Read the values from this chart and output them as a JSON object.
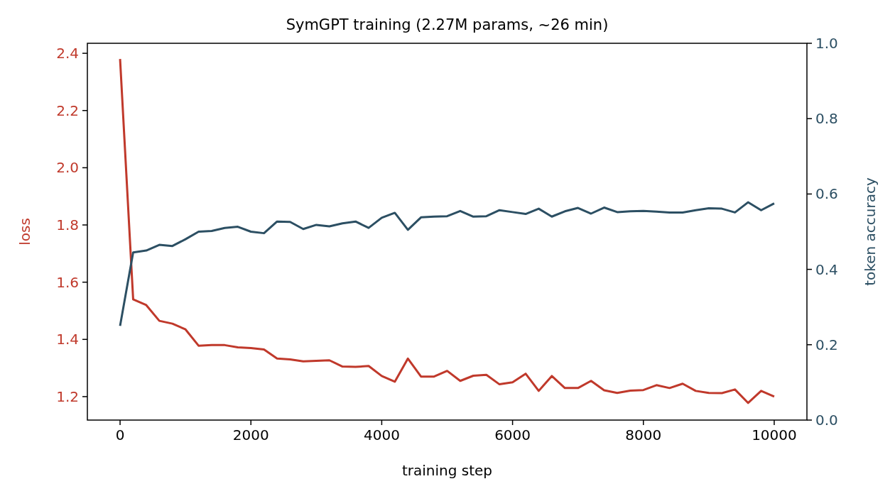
{
  "chart_data": {
    "type": "line",
    "title": "SymGPT training (2.27M params, ~26 min)",
    "xlabel": "training step",
    "ylabel": "loss",
    "y2label": "token accuracy",
    "x": [
      0,
      200,
      400,
      600,
      800,
      1000,
      1200,
      1400,
      1600,
      1800,
      2000,
      2200,
      2400,
      2600,
      2800,
      3000,
      3200,
      3400,
      3600,
      3800,
      4000,
      4200,
      4400,
      4600,
      4800,
      5000,
      5200,
      5400,
      5600,
      5800,
      6000,
      6200,
      6400,
      6600,
      6800,
      7000,
      7200,
      7400,
      7600,
      7800,
      8000,
      8200,
      8400,
      8600,
      8800,
      9000,
      9200,
      9400,
      9600,
      9800,
      10000
    ],
    "series": [
      {
        "color": "#c0392b",
        "values": [
          2.38,
          1.54,
          1.52,
          1.465,
          1.455,
          1.435,
          1.378,
          1.38,
          1.38,
          1.372,
          1.37,
          1.365,
          1.333,
          1.33,
          1.323,
          1.325,
          1.327,
          1.305,
          1.304,
          1.307,
          1.272,
          1.252,
          1.333,
          1.27,
          1.27,
          1.29,
          1.255,
          1.273,
          1.276,
          1.243,
          1.25,
          1.28,
          1.22,
          1.272,
          1.23,
          1.23,
          1.255,
          1.222,
          1.213,
          1.221,
          1.223,
          1.24,
          1.23,
          1.245,
          1.22,
          1.213,
          1.212,
          1.225,
          1.178,
          1.22,
          1.2
        ]
      },
      {
        "color": "#2c4f63",
        "axis": "y2",
        "values": [
          0.25,
          0.445,
          0.45,
          0.465,
          0.462,
          0.48,
          0.5,
          0.502,
          0.51,
          0.513,
          0.5,
          0.496,
          0.527,
          0.526,
          0.507,
          0.518,
          0.514,
          0.522,
          0.527,
          0.51,
          0.537,
          0.55,
          0.505,
          0.538,
          0.54,
          0.541,
          0.555,
          0.54,
          0.541,
          0.557,
          0.552,
          0.547,
          0.561,
          0.54,
          0.554,
          0.563,
          0.548,
          0.564,
          0.552,
          0.554,
          0.555,
          0.553,
          0.551,
          0.551,
          0.557,
          0.562,
          0.561,
          0.551,
          0.578,
          0.557,
          0.575
        ]
      }
    ],
    "xlim": [
      -500,
      10500
    ],
    "xticks": [
      0,
      2000,
      4000,
      6000,
      8000,
      10000
    ],
    "ylim": [
      1.118,
      2.435
    ],
    "yticks": [
      {
        "value": 1.2,
        "label": "1.2"
      },
      {
        "value": 1.4,
        "label": "1.4"
      },
      {
        "value": 1.6,
        "label": "1.6"
      },
      {
        "value": 1.8,
        "label": "1.8"
      },
      {
        "value": 2.0,
        "label": "2.0"
      },
      {
        "value": 2.2,
        "label": "2.2"
      },
      {
        "value": 2.4,
        "label": "2.4"
      }
    ],
    "y2lim": [
      0,
      1
    ],
    "y2ticks": [
      {
        "value": 0,
        "label": "0.0"
      },
      {
        "value": 0.2,
        "label": "0.2"
      },
      {
        "value": 0.4,
        "label": "0.4"
      },
      {
        "value": 0.6,
        "label": "0.6"
      },
      {
        "value": 0.8,
        "label": "0.8"
      },
      {
        "value": 1,
        "label": "1.0"
      }
    ],
    "grid": false
  }
}
